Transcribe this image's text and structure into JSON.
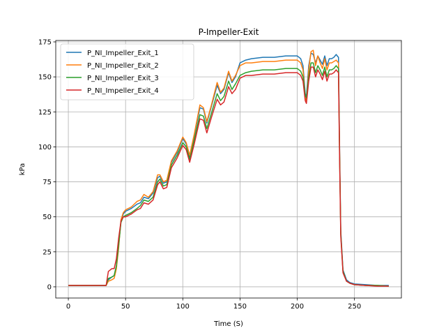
{
  "chart_data": {
    "type": "line",
    "title": "P-Impeller-Exit",
    "xlabel": "Time (S)",
    "ylabel": "kPa",
    "xlim": [
      -11,
      291
    ],
    "ylim": [
      -8,
      176
    ],
    "xticks": [
      0,
      50,
      100,
      150,
      200,
      250
    ],
    "yticks": [
      0,
      25,
      50,
      75,
      100,
      125,
      150,
      175
    ],
    "grid": true,
    "legend_position": "top-left",
    "series": [
      {
        "name": "P_NI_Impeller_Exit_1",
        "color": "#1f77b4",
        "x": [
          0,
          10,
          20,
          30,
          33,
          35,
          38,
          40,
          42,
          44,
          46,
          48,
          50,
          55,
          60,
          63,
          66,
          70,
          74,
          78,
          80,
          83,
          86,
          90,
          95,
          100,
          103,
          106,
          110,
          115,
          118,
          121,
          125,
          130,
          133,
          136,
          140,
          143,
          146,
          150,
          155,
          160,
          170,
          180,
          190,
          200,
          203,
          205,
          207,
          208,
          210,
          212,
          214,
          216,
          218,
          220,
          222,
          224,
          226,
          228,
          230,
          232,
          234,
          235,
          236,
          237,
          238,
          240,
          243,
          246,
          250,
          260,
          270,
          280
        ],
        "y": [
          1,
          1,
          1,
          1,
          1,
          5,
          7,
          8,
          15,
          30,
          47,
          52,
          54,
          56,
          59,
          60,
          64,
          63,
          67,
          78,
          79,
          74,
          75,
          89,
          96,
          106,
          102,
          93,
          108,
          128,
          127,
          117,
          129,
          144,
          138,
          141,
          153,
          146,
          150,
          160,
          162,
          163,
          164,
          164,
          165,
          165,
          163,
          158,
          138,
          136,
          158,
          167,
          166,
          160,
          165,
          162,
          159,
          165,
          158,
          163,
          163,
          164,
          166,
          165,
          164,
          100,
          40,
          12,
          5,
          3,
          2,
          1.5,
          1,
          1
        ]
      },
      {
        "name": "P_NI_Impeller_Exit_2",
        "color": "#ff7f0e",
        "x": [
          0,
          10,
          20,
          30,
          33,
          35,
          38,
          40,
          42,
          44,
          46,
          48,
          50,
          55,
          60,
          63,
          66,
          70,
          74,
          78,
          80,
          83,
          86,
          90,
          95,
          100,
          103,
          106,
          110,
          115,
          118,
          121,
          125,
          130,
          133,
          136,
          140,
          143,
          146,
          150,
          155,
          160,
          170,
          180,
          190,
          200,
          203,
          205,
          207,
          208,
          210,
          212,
          214,
          216,
          218,
          220,
          222,
          224,
          226,
          228,
          230,
          232,
          234,
          235,
          236,
          237,
          238,
          240,
          243,
          246,
          250,
          260,
          270,
          280
        ],
        "y": [
          1,
          1,
          1,
          1,
          1,
          4,
          5,
          6,
          13,
          28,
          48,
          53,
          55,
          57,
          61,
          62,
          66,
          64,
          68,
          80,
          80,
          75,
          76,
          90,
          97,
          107,
          103,
          94,
          109,
          130,
          128,
          118,
          130,
          146,
          139,
          142,
          154,
          147,
          151,
          158,
          160,
          160,
          161,
          161,
          162,
          162,
          160,
          155,
          135,
          133,
          155,
          168,
          169,
          158,
          165,
          160,
          156,
          163,
          155,
          160,
          160,
          161,
          162,
          161,
          160,
          98,
          38,
          11,
          4,
          2.5,
          1.5,
          1,
          1,
          0.5
        ]
      },
      {
        "name": "P_NI_Impeller_Exit_3",
        "color": "#2ca02c",
        "x": [
          0,
          10,
          20,
          30,
          33,
          35,
          38,
          40,
          42,
          44,
          46,
          48,
          50,
          55,
          60,
          63,
          66,
          70,
          74,
          78,
          80,
          83,
          86,
          90,
          95,
          100,
          103,
          106,
          110,
          115,
          118,
          121,
          125,
          130,
          133,
          136,
          140,
          143,
          146,
          150,
          155,
          160,
          170,
          180,
          190,
          200,
          203,
          205,
          207,
          208,
          210,
          212,
          214,
          216,
          218,
          220,
          222,
          224,
          226,
          228,
          230,
          232,
          234,
          235,
          236,
          237,
          238,
          240,
          243,
          246,
          250,
          260,
          270,
          280
        ],
        "y": [
          1,
          1,
          1,
          1,
          1,
          6,
          7,
          8,
          15,
          30,
          46,
          50,
          51,
          53,
          56,
          58,
          62,
          61,
          64,
          75,
          77,
          72,
          73,
          87,
          94,
          103,
          100,
          91,
          105,
          123,
          122,
          113,
          124,
          138,
          133,
          136,
          147,
          141,
          145,
          151,
          153,
          154,
          155,
          155,
          156,
          156,
          154,
          150,
          137,
          135,
          150,
          160,
          160,
          153,
          158,
          155,
          151,
          157,
          150,
          155,
          155,
          156,
          158,
          157,
          156,
          95,
          38,
          11,
          4,
          2.5,
          1.5,
          1,
          1,
          0.5
        ]
      },
      {
        "name": "P_NI_Impeller_Exit_4",
        "color": "#d62728",
        "x": [
          0,
          10,
          20,
          30,
          33,
          35,
          38,
          40,
          42,
          44,
          46,
          48,
          50,
          55,
          60,
          63,
          66,
          70,
          74,
          78,
          80,
          83,
          86,
          90,
          95,
          100,
          103,
          106,
          110,
          115,
          118,
          121,
          125,
          130,
          133,
          136,
          140,
          143,
          146,
          150,
          155,
          160,
          170,
          180,
          190,
          200,
          203,
          205,
          207,
          208,
          210,
          212,
          214,
          216,
          218,
          220,
          222,
          224,
          226,
          228,
          230,
          232,
          234,
          235,
          236,
          237,
          238,
          240,
          243,
          246,
          250,
          260,
          270,
          280
        ],
        "y": [
          1,
          1,
          1,
          1,
          1,
          11,
          13,
          13,
          20,
          35,
          47,
          50,
          50,
          52,
          55,
          56,
          60,
          59,
          62,
          73,
          75,
          70,
          71,
          85,
          92,
          101,
          98,
          89,
          102,
          120,
          119,
          110,
          121,
          134,
          130,
          132,
          143,
          138,
          141,
          149,
          151,
          151,
          152,
          152,
          153,
          153,
          151,
          147,
          133,
          131,
          147,
          157,
          157,
          150,
          155,
          152,
          148,
          154,
          147,
          152,
          152,
          153,
          155,
          154,
          153,
          92,
          36,
          10,
          4,
          2.5,
          1.5,
          1,
          0.5,
          0.5
        ]
      }
    ]
  }
}
